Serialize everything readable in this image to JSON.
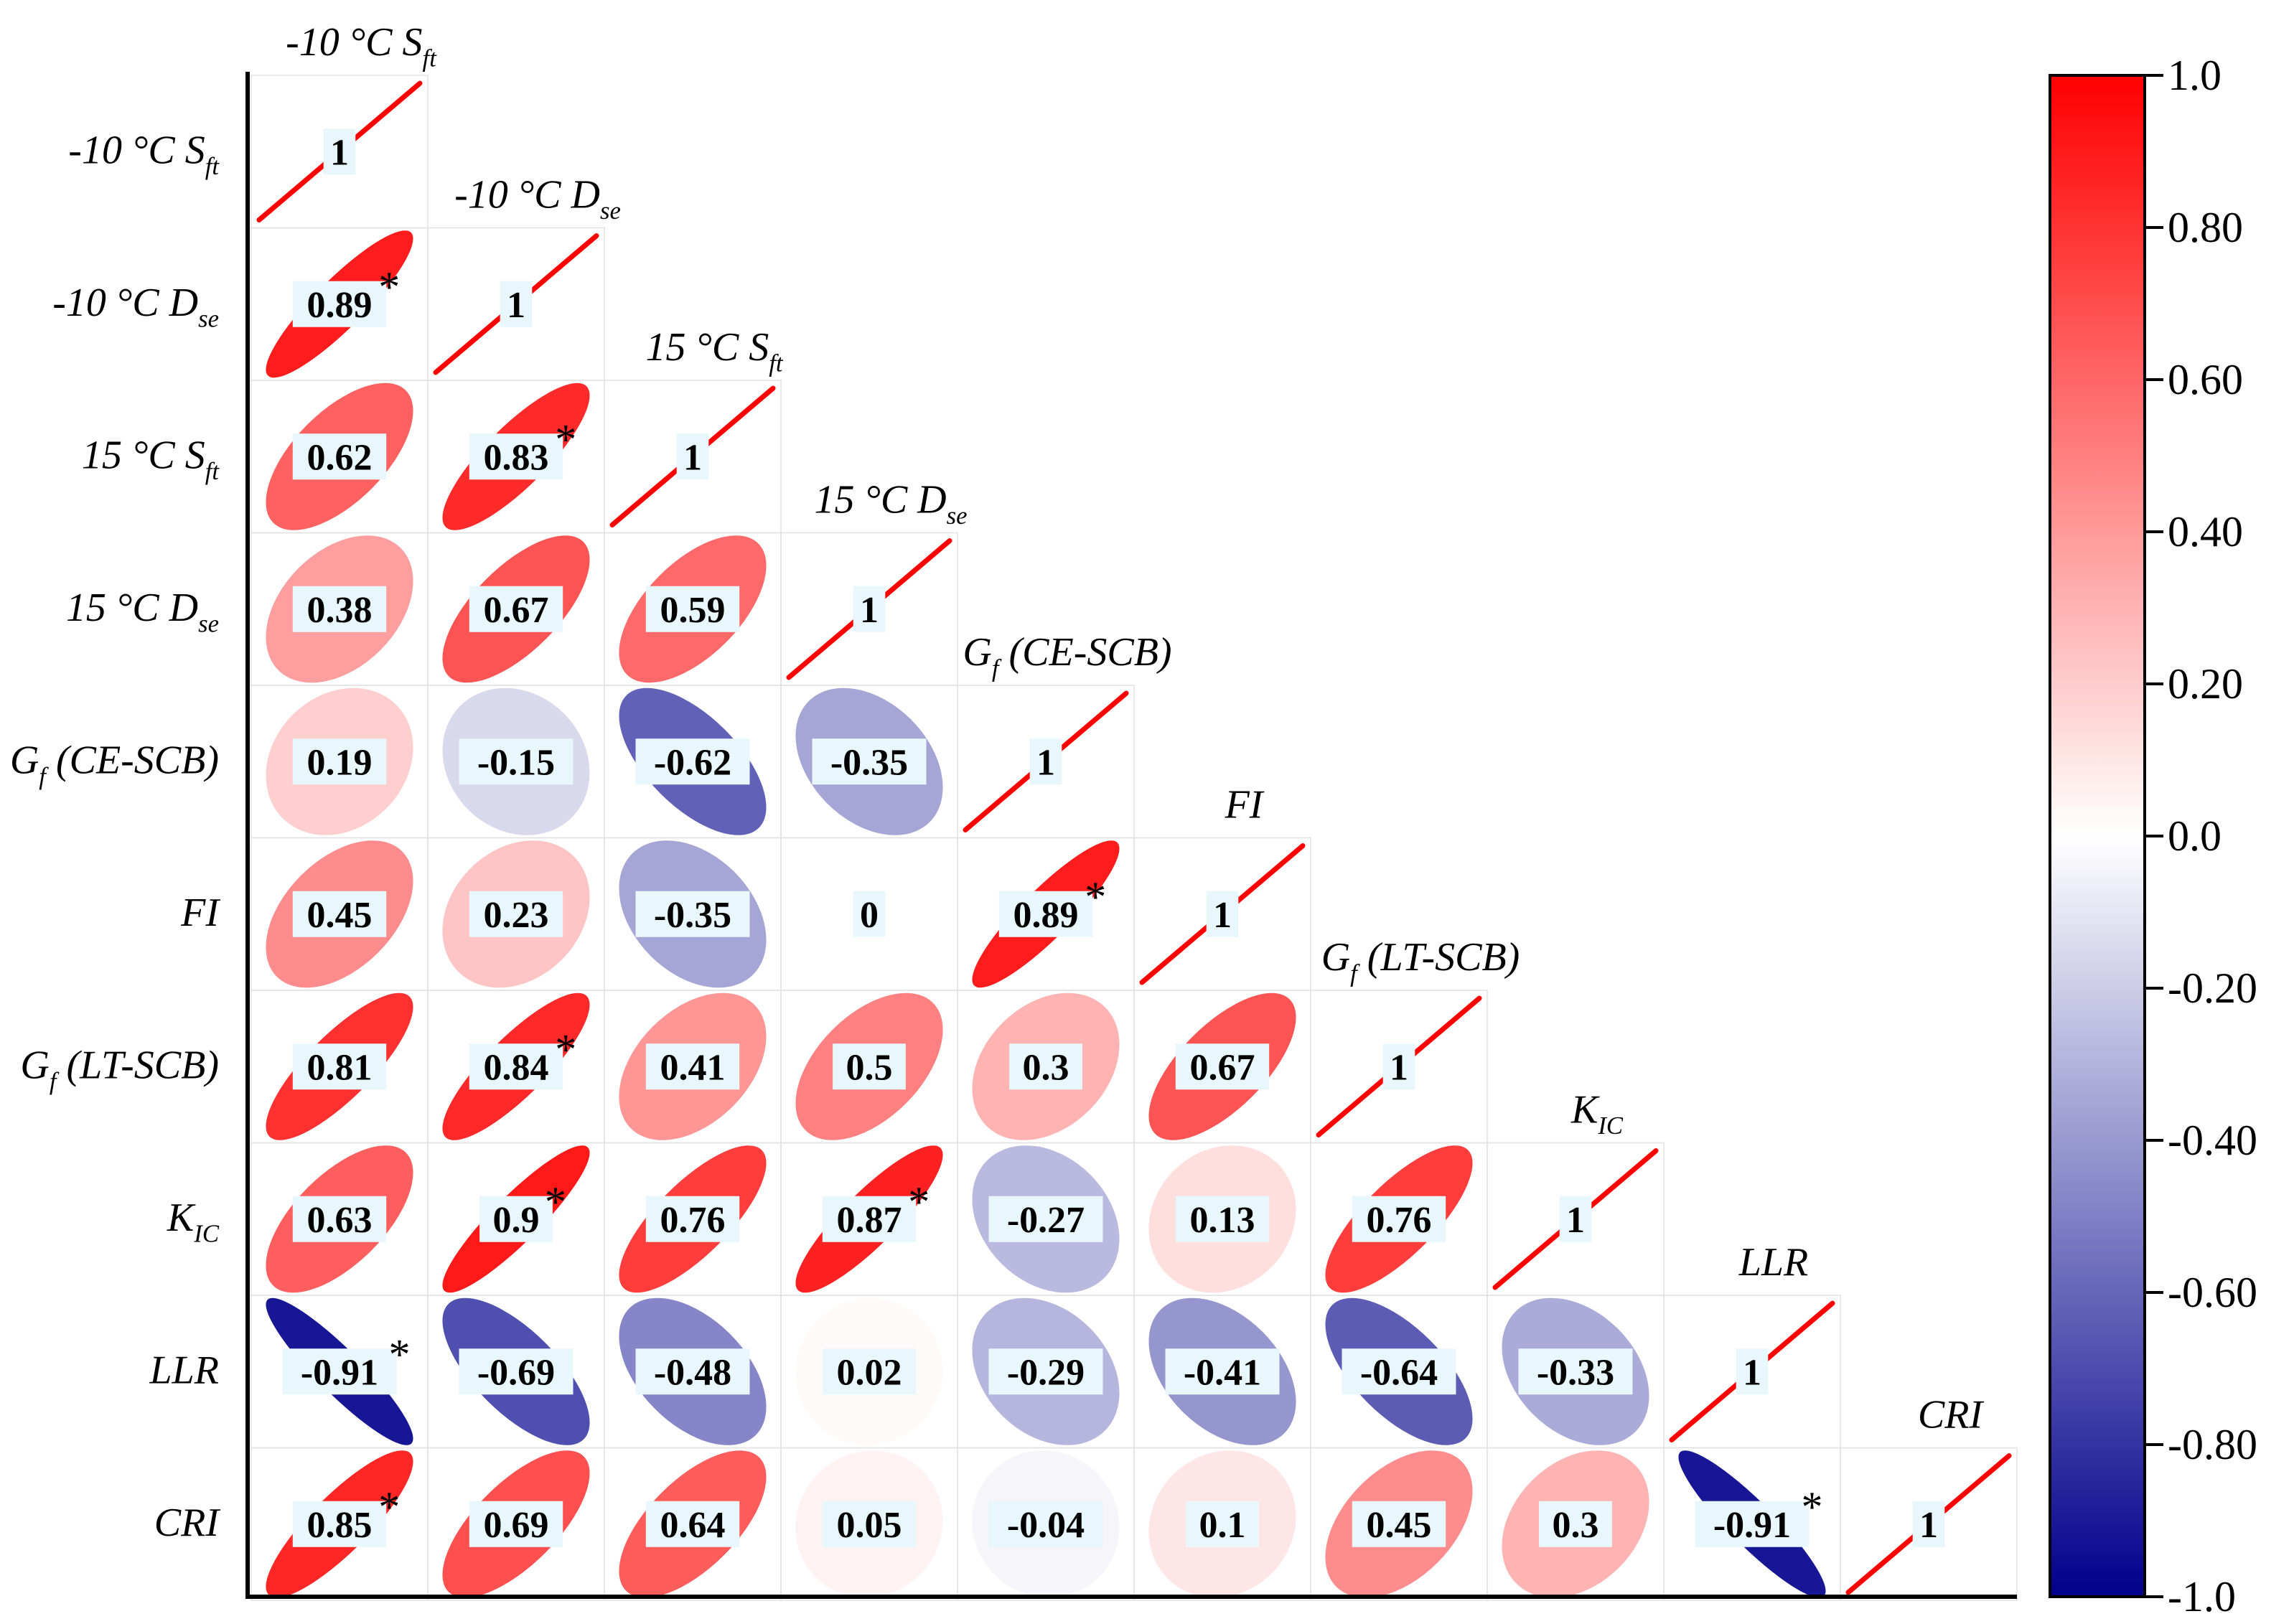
{
  "chart_data": {
    "type": "heatmap",
    "title": "",
    "variables": [
      {
        "base": "-10 °C S",
        "sub": "ft"
      },
      {
        "base": "-10 °C D",
        "sub": "se"
      },
      {
        "base": "15 °C S",
        "sub": "ft"
      },
      {
        "base": "15 °C D",
        "sub": "se"
      },
      {
        "base": "G",
        "sub": "f",
        "suffix": " (CE-SCB)"
      },
      {
        "base": "FI",
        "sub": ""
      },
      {
        "base": "G",
        "sub": "f",
        "suffix": " (LT-SCB)"
      },
      {
        "base": "K",
        "sub": "IC"
      },
      {
        "base": "LLR",
        "sub": ""
      },
      {
        "base": "CRI",
        "sub": ""
      }
    ],
    "matrix": [
      [
        1
      ],
      [
        0.89,
        1
      ],
      [
        0.62,
        0.83,
        1
      ],
      [
        0.38,
        0.67,
        0.59,
        1
      ],
      [
        0.19,
        -0.15,
        -0.62,
        -0.35,
        1
      ],
      [
        0.45,
        0.23,
        -0.35,
        0,
        0.89,
        1
      ],
      [
        0.81,
        0.84,
        0.41,
        0.5,
        0.3,
        0.67,
        1
      ],
      [
        0.63,
        0.9,
        0.76,
        0.87,
        -0.27,
        0.13,
        0.76,
        1
      ],
      [
        -0.91,
        -0.69,
        -0.48,
        0.02,
        -0.29,
        -0.41,
        -0.64,
        -0.33,
        1
      ],
      [
        0.85,
        0.69,
        0.64,
        0.05,
        -0.04,
        0.1,
        0.45,
        0.3,
        -0.91,
        1
      ]
    ],
    "significant": [
      [
        1,
        0
      ],
      [
        2,
        1
      ],
      [
        5,
        4
      ],
      [
        6,
        1
      ],
      [
        7,
        1
      ],
      [
        7,
        3
      ],
      [
        8,
        0
      ],
      [
        9,
        0
      ],
      [
        9,
        8
      ]
    ],
    "significance_marker": "*",
    "colorbar": {
      "range": [
        -1.0,
        1.0
      ],
      "ticks": [
        "1.0",
        "0.80",
        "0.60",
        "0.40",
        "0.20",
        "0.0",
        "-0.20",
        "-0.40",
        "-0.60",
        "-0.80",
        "-1.0"
      ],
      "colors": {
        "positive": "#ff0000",
        "zero": "#ffffff",
        "negative": "#00008b"
      }
    },
    "grid": true
  }
}
